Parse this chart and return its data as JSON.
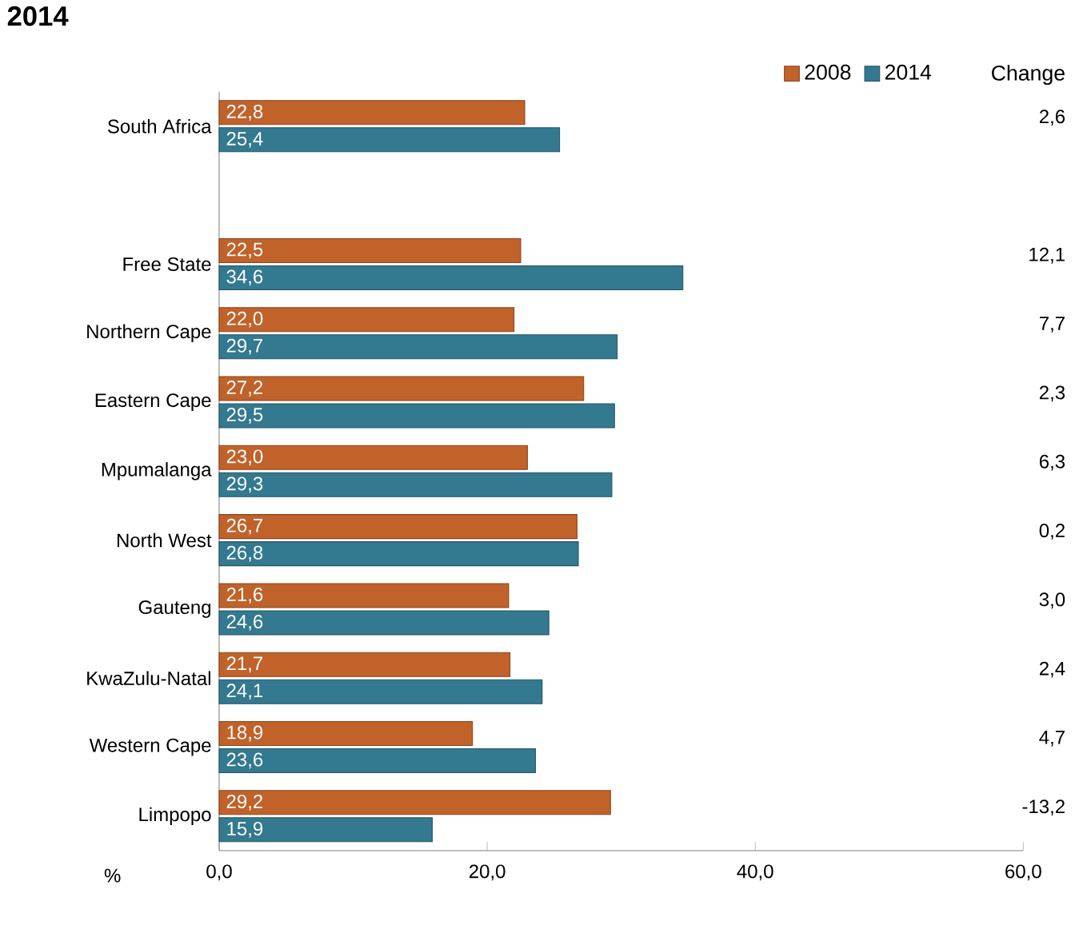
{
  "chart_data": {
    "type": "bar",
    "orientation": "horizontal",
    "title": "2014",
    "xlabel": "%",
    "categories": [
      "South Africa",
      null,
      "Free State",
      "Northern Cape",
      "Eastern Cape",
      "Mpumalanga",
      "North West",
      "Gauteng",
      "KwaZulu-Natal",
      "Western Cape",
      "Limpopo"
    ],
    "series": [
      {
        "name": "2008",
        "color": "#c0622a",
        "values": [
          22.8,
          null,
          22.5,
          22.0,
          27.2,
          23.0,
          26.7,
          21.6,
          21.7,
          18.9,
          29.2
        ],
        "value_labels": [
          "22,8",
          null,
          "22,5",
          "22,0",
          "27,2",
          "23,0",
          "26,7",
          "21,6",
          "21,7",
          "18,9",
          "29,2"
        ]
      },
      {
        "name": "2014",
        "color": "#33798f",
        "values": [
          25.4,
          null,
          34.6,
          29.7,
          29.5,
          29.3,
          26.8,
          24.6,
          24.1,
          23.6,
          15.9
        ],
        "value_labels": [
          "25,4",
          null,
          "34,6",
          "29,7",
          "29,5",
          "29,3",
          "26,8",
          "24,6",
          "24,1",
          "23,6",
          "15,9"
        ]
      }
    ],
    "xlim": [
      0,
      60
    ],
    "xticks": [
      {
        "value": 0,
        "label": "0,0"
      },
      {
        "value": 20,
        "label": "20,0"
      },
      {
        "value": 40,
        "label": "40,0"
      },
      {
        "value": 60,
        "label": "60,0"
      }
    ],
    "legend": "top right",
    "grid": false,
    "annotations": [
      "Change",
      "2,6",
      "12,1",
      "7,7",
      "2,3",
      "6,3",
      "0,2",
      "3,0",
      "2,4",
      "4,7",
      "-13,2"
    ]
  }
}
